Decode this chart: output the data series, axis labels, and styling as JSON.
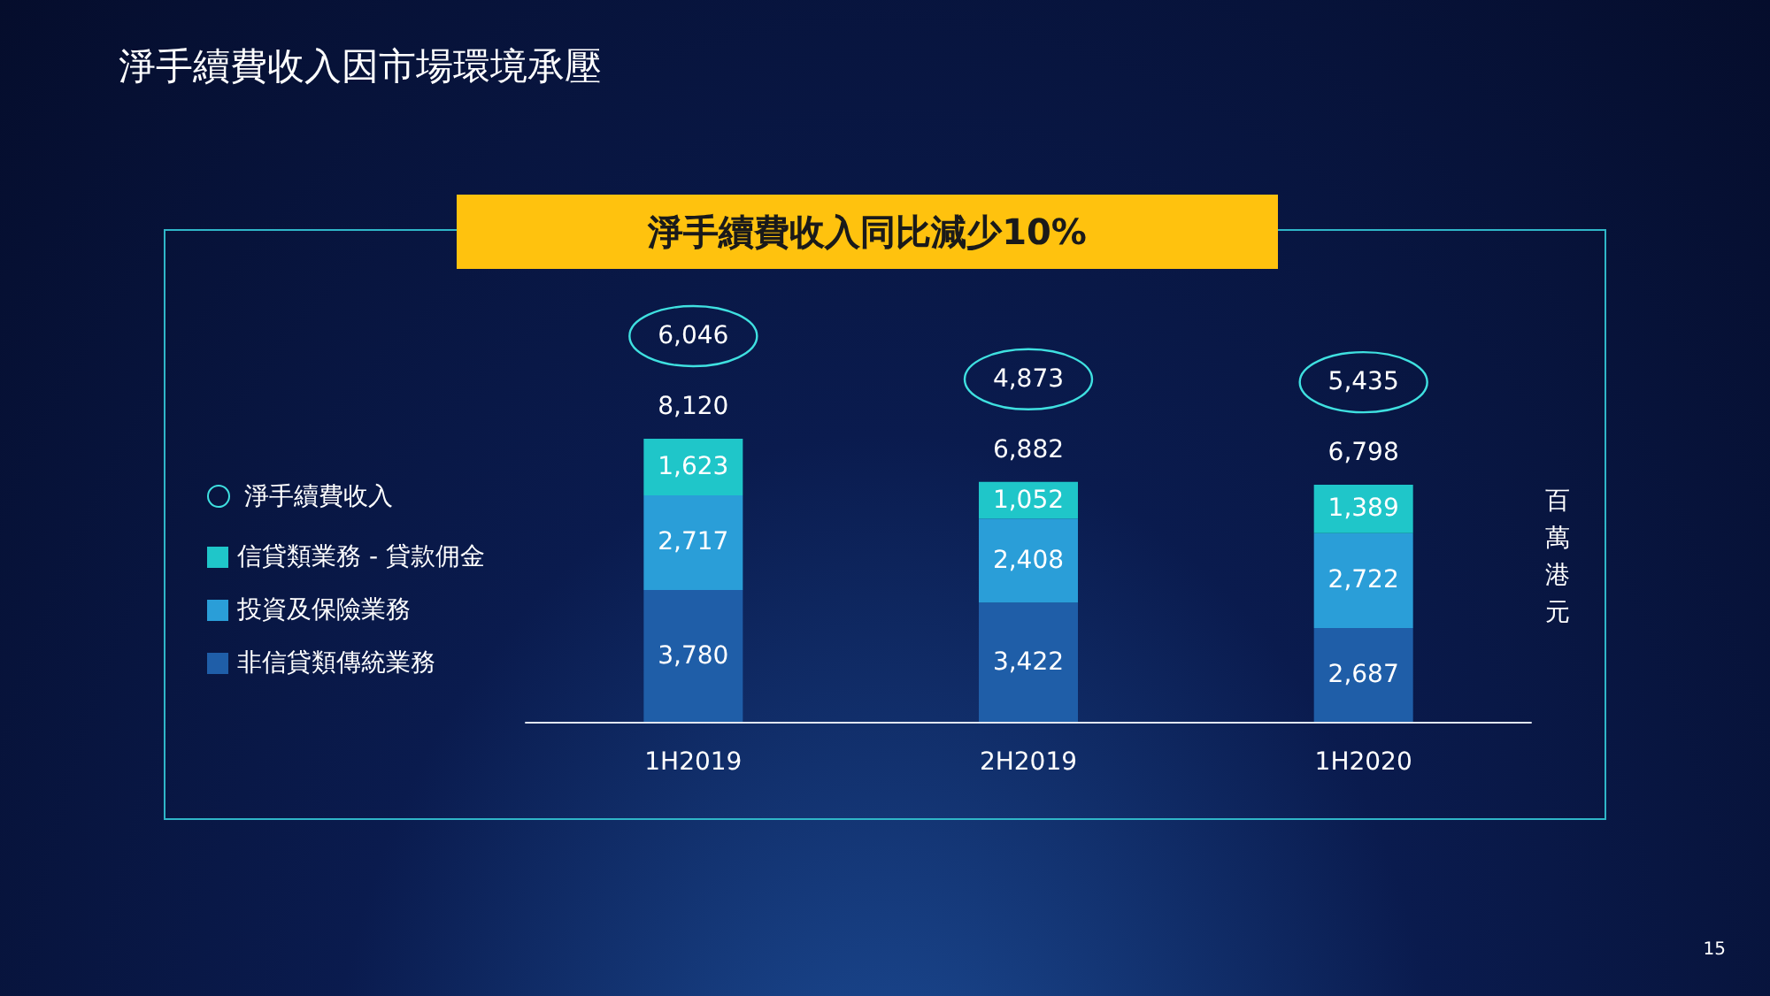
{
  "chart_data": {
    "type": "bar",
    "title": "淨手續費收入因市場環境承壓",
    "subtitle": "淨手續費收入同比減少10%",
    "ylabel": "百萬港元",
    "categories": [
      "1H2019",
      "2H2019",
      "1H2020"
    ],
    "stacked": true,
    "legend": "left",
    "series": [
      {
        "name": "非信貸類傳統業務",
        "color": "#1f5ea8",
        "values": [
          3780,
          3422,
          2687
        ],
        "value_labels": [
          "3,780",
          "3,422",
          "2,687"
        ]
      },
      {
        "name": "投資及保險業務",
        "color": "#2a9ed8",
        "values": [
          2717,
          2408,
          2722
        ],
        "value_labels": [
          "2,717",
          "2,408",
          "2,722"
        ]
      },
      {
        "name": "信貸類業務 - 貸款佣金",
        "color": "#1fc6c9",
        "values": [
          1623,
          1052,
          1389
        ],
        "value_labels": [
          "1,623",
          "1,052",
          "1,389"
        ]
      }
    ],
    "totals": [
      "8,120",
      "6,882",
      "6,798"
    ],
    "annotations": [
      "淨手續費收入",
      "6,046",
      "4,873",
      "5,435",
      "15"
    ]
  }
}
